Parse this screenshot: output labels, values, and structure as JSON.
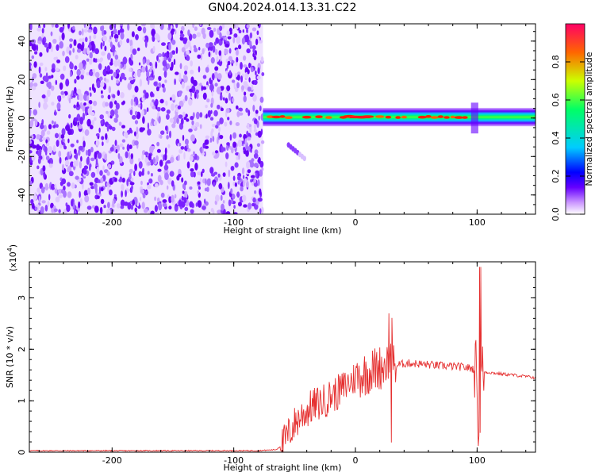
{
  "title": "GN04.2024.014.13.31.C22",
  "chart_data": [
    {
      "type": "heatmap",
      "title": "GN04.2024.014.13.31.C22",
      "xlabel": "Height of straight line (km)",
      "ylabel": "Frequency (Hz)",
      "xlim": [
        -268,
        148
      ],
      "ylim": [
        -50,
        49
      ],
      "x_ticks": [
        -200,
        -100,
        0,
        100
      ],
      "y_ticks": [
        -40,
        -20,
        0,
        20,
        40
      ],
      "colorbar": {
        "label": "Normalized spectral amplitude",
        "ticks": [
          "0.0",
          "0.2",
          "0.4",
          "0.6",
          "0.8"
        ],
        "range": [
          0,
          1
        ],
        "colors": [
          "#ffffff",
          "#cc99ff",
          "#6600ff",
          "#0000ff",
          "#00ccff",
          "#00ff66",
          "#ccff00",
          "#ff6600",
          "#ff0066"
        ]
      },
      "regions": [
        {
          "name": "broadband noise",
          "x_range": [
            -268,
            -76
          ],
          "freq_range": [
            -50,
            49
          ]
        },
        {
          "name": "narrowband signal near 0 Hz",
          "x_range": [
            -76,
            148
          ],
          "freq_center": 0.5,
          "halfwidth_hz": 3
        },
        {
          "name": "faint feature",
          "x_range": [
            -55,
            -40
          ],
          "freq_range": [
            -22,
            -14
          ]
        }
      ]
    },
    {
      "type": "line",
      "xlabel": "Height of straight line (km)",
      "ylabel": "SNR (10 * v/v)",
      "y_scale_label": "(x10",
      "y_scale_exp": "4",
      "xlim": [
        -268,
        148
      ],
      "ylim": [
        0,
        3.7
      ],
      "x_ticks": [
        -200,
        -100,
        0,
        100
      ],
      "y_ticks": [
        0,
        1,
        2,
        3
      ],
      "color": "#e53030",
      "series": [
        {
          "x": [
            -268,
            -250,
            -200,
            -150,
            -100,
            -80,
            -65,
            -60,
            -55,
            -50,
            -45,
            -40,
            -35,
            -30,
            -25,
            -20,
            -15,
            -10,
            -5,
            0,
            5,
            10,
            15,
            20,
            25,
            28,
            30,
            35,
            40,
            45,
            50,
            60,
            70,
            80,
            90,
            95,
            100,
            101,
            102,
            103,
            104,
            105,
            110,
            120,
            130,
            140,
            148
          ],
          "y": [
            0.03,
            0.03,
            0.03,
            0.03,
            0.03,
            0.03,
            0.05,
            0.15,
            0.35,
            0.55,
            0.7,
            0.8,
            0.9,
            0.95,
            1.0,
            1.1,
            1.15,
            1.25,
            1.35,
            1.45,
            1.5,
            1.55,
            1.6,
            1.65,
            1.7,
            1.72,
            1.68,
            1.7,
            1.72,
            1.73,
            1.72,
            1.7,
            1.68,
            1.67,
            1.65,
            1.63,
            1.6,
            0.3,
            3.65,
            1.6,
            1.58,
            1.56,
            1.55,
            1.52,
            1.5,
            1.47,
            1.45
          ]
        }
      ]
    }
  ]
}
